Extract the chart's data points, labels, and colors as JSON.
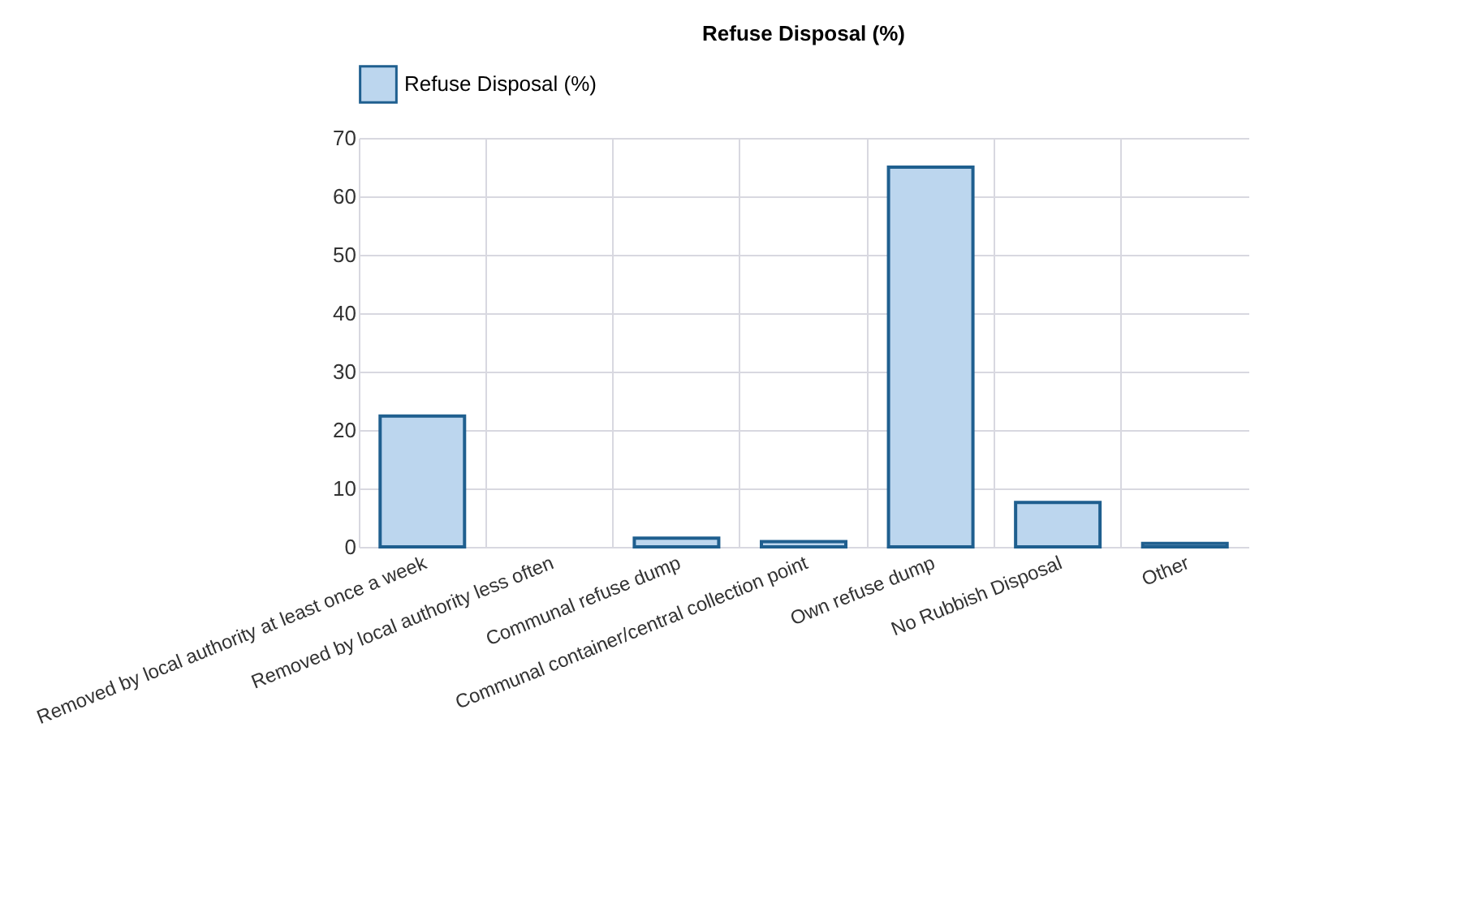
{
  "chart_data": {
    "type": "bar",
    "title": "Refuse Disposal (%)",
    "categories": [
      "Removed by local authority at least once a week",
      "Removed by local authority less often",
      "Communal refuse dump",
      "Communal container/central collection point",
      "Own refuse dump",
      "No Rubbish Disposal",
      "Other"
    ],
    "series": [
      {
        "name": "Refuse Disposal (%)",
        "color": "#bcd6ee",
        "values": [
          22.4,
          0,
          1.5,
          0.9,
          65,
          7.6,
          0.6
        ]
      }
    ],
    "ylim": [
      0,
      70
    ],
    "yticks": [
      0,
      10,
      20,
      30,
      40,
      50,
      60,
      70
    ],
    "grid": true,
    "legend": "top left"
  }
}
